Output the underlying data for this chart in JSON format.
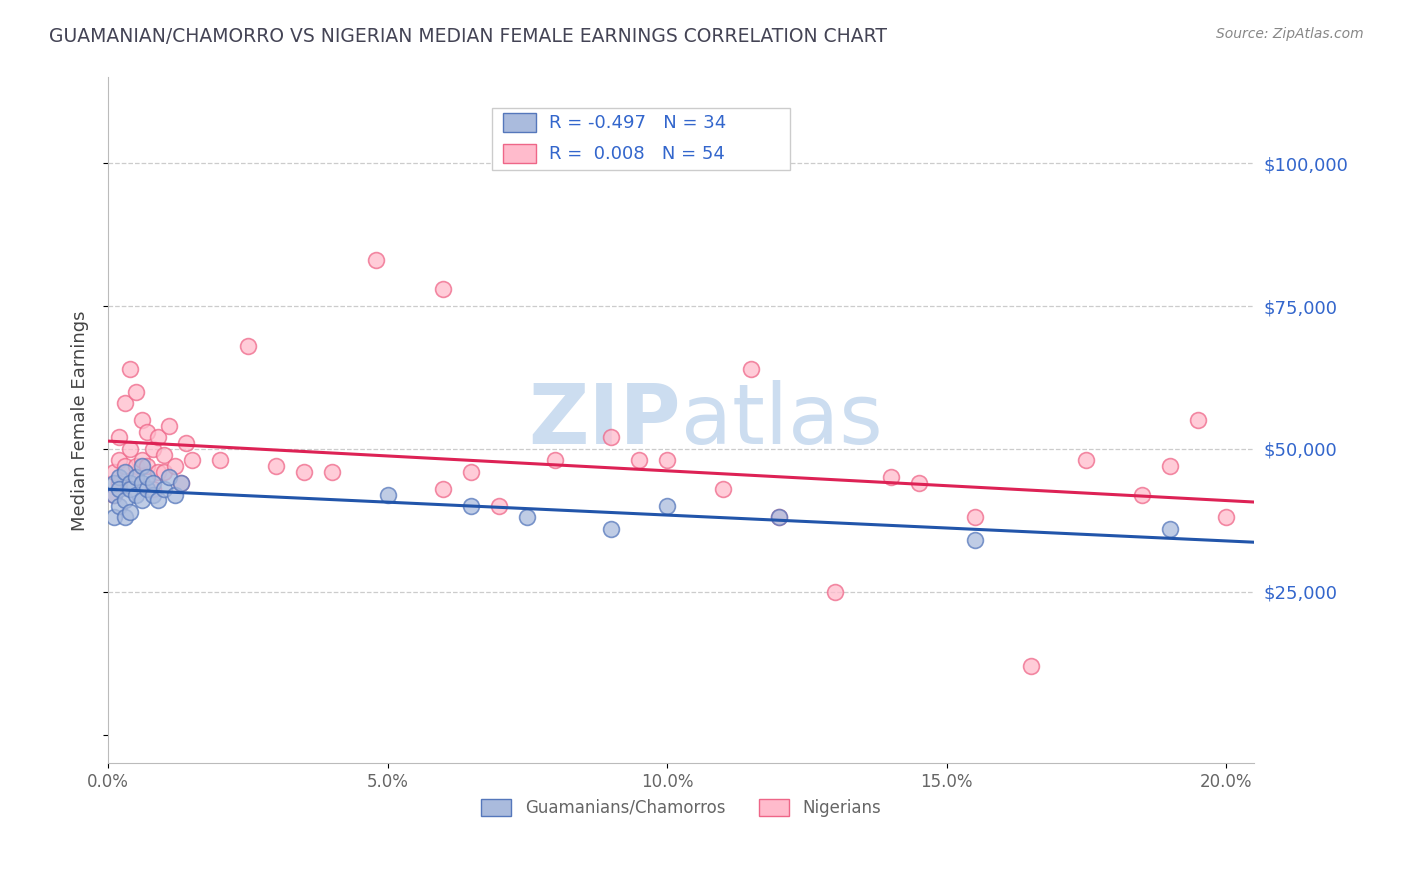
{
  "title": "GUAMANIAN/CHAMORRO VS NIGERIAN MEDIAN FEMALE EARNINGS CORRELATION CHART",
  "source": "Source: ZipAtlas.com",
  "ylabel": "Median Female Earnings",
  "xlim": [
    0.0,
    0.205
  ],
  "ylim": [
    -5000,
    115000
  ],
  "yticks": [
    0,
    25000,
    50000,
    75000,
    100000
  ],
  "xticks": [
    0.0,
    0.05,
    0.1,
    0.15,
    0.2
  ],
  "xtick_labels": [
    "0.0%",
    "5.0%",
    "10.0%",
    "15.0%",
    "20.0%"
  ],
  "background_color": "#ffffff",
  "legend_r_blue": "-0.497",
  "legend_n_blue": "34",
  "legend_r_pink": "0.008",
  "legend_n_pink": "54",
  "blue_fill": "#aabbdd",
  "pink_fill": "#ffbbcc",
  "blue_edge": "#5577bb",
  "pink_edge": "#ee6688",
  "blue_line_color": "#2255aa",
  "pink_line_color": "#dd2255",
  "legend_text_color": "#3366cc",
  "watermark_color": "#ccddf0",
  "title_color": "#444455",
  "source_color": "#888888",
  "ylabel_color": "#444444",
  "tick_color": "#666666",
  "grid_color": "#cccccc",
  "blue_scatter_x": [
    0.001,
    0.001,
    0.001,
    0.002,
    0.002,
    0.002,
    0.003,
    0.003,
    0.003,
    0.004,
    0.004,
    0.004,
    0.005,
    0.005,
    0.006,
    0.006,
    0.006,
    0.007,
    0.007,
    0.008,
    0.008,
    0.009,
    0.01,
    0.011,
    0.012,
    0.013,
    0.05,
    0.065,
    0.075,
    0.09,
    0.1,
    0.12,
    0.155,
    0.19
  ],
  "blue_scatter_y": [
    42000,
    38000,
    44000,
    45000,
    40000,
    43000,
    46000,
    41000,
    38000,
    44000,
    43000,
    39000,
    45000,
    42000,
    44000,
    47000,
    41000,
    43000,
    45000,
    42000,
    44000,
    41000,
    43000,
    45000,
    42000,
    44000,
    42000,
    40000,
    38000,
    36000,
    40000,
    38000,
    34000,
    36000
  ],
  "pink_scatter_x": [
    0.001,
    0.001,
    0.002,
    0.002,
    0.002,
    0.003,
    0.003,
    0.004,
    0.004,
    0.005,
    0.005,
    0.005,
    0.006,
    0.006,
    0.007,
    0.007,
    0.008,
    0.008,
    0.009,
    0.009,
    0.01,
    0.01,
    0.011,
    0.012,
    0.013,
    0.014,
    0.015,
    0.02,
    0.025,
    0.03,
    0.035,
    0.04,
    0.048,
    0.06,
    0.06,
    0.065,
    0.07,
    0.08,
    0.09,
    0.095,
    0.1,
    0.11,
    0.115,
    0.12,
    0.13,
    0.14,
    0.145,
    0.155,
    0.165,
    0.175,
    0.185,
    0.19,
    0.195,
    0.2
  ],
  "pink_scatter_y": [
    42000,
    46000,
    48000,
    52000,
    44000,
    58000,
    47000,
    64000,
    50000,
    47000,
    45000,
    60000,
    48000,
    55000,
    47000,
    53000,
    43000,
    50000,
    52000,
    46000,
    49000,
    46000,
    54000,
    47000,
    44000,
    51000,
    48000,
    48000,
    68000,
    47000,
    46000,
    46000,
    83000,
    43000,
    78000,
    46000,
    40000,
    48000,
    52000,
    48000,
    48000,
    43000,
    64000,
    38000,
    25000,
    45000,
    44000,
    38000,
    12000,
    48000,
    42000,
    47000,
    55000,
    38000
  ]
}
